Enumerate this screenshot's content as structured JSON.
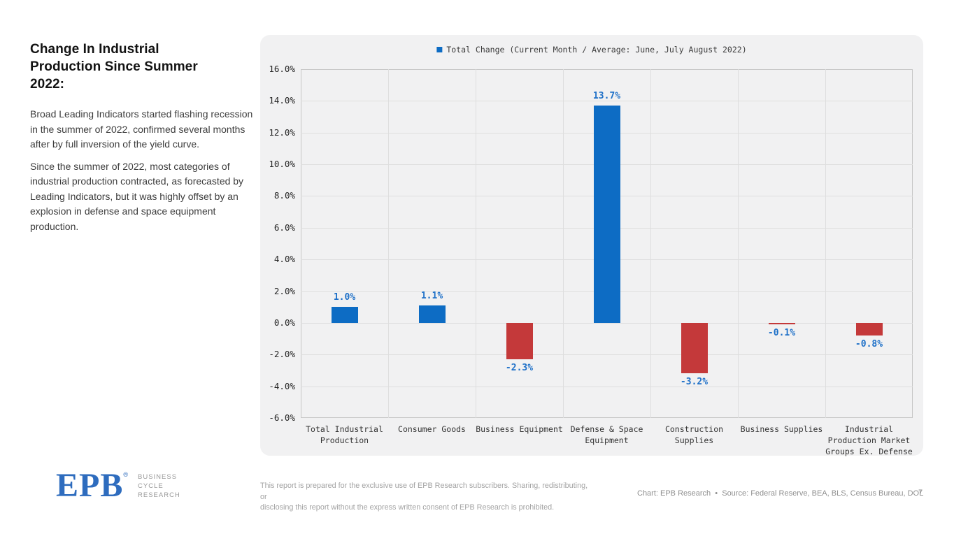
{
  "left_panel": {
    "title": "Change In Industrial Production Since Summer 2022:",
    "paragraphs": [
      "Broad Leading Indicators started flashing recession in the summer of 2022, confirmed several months after by full inversion of the yield curve.",
      "Since the summer of 2022, most categories of industrial production contracted, as forecasted by Leading Indicators, but it was highly offset by an explosion in defense and space equipment production."
    ]
  },
  "chart_data": {
    "type": "bar",
    "title": "",
    "xlabel": "",
    "ylabel": "",
    "legend": "Total Change (Current Month / Average: June, July August 2022)",
    "legend_position": "top-center",
    "grid": true,
    "categories": [
      "Total Industrial\nProduction",
      "Consumer Goods",
      "Business Equipment",
      "Defense & Space\nEquipment",
      "Construction\nSupplies",
      "Business Supplies",
      "Industrial\nProduction Market\nGroups Ex. Defense"
    ],
    "series": [
      {
        "name": "Total Change (Current Month / Average: June, July August 2022)",
        "values": [
          1.0,
          1.1,
          -2.3,
          13.7,
          -3.2,
          -0.1,
          -0.8
        ]
      }
    ],
    "value_labels": [
      "1.0%",
      "1.1%",
      "-2.3%",
      "13.7%",
      "-3.2%",
      "-0.1%",
      "-0.8%"
    ],
    "ylim": [
      -6,
      16
    ],
    "ytick_step": 2,
    "yticks": [
      {
        "v": 16,
        "label": "16.0%"
      },
      {
        "v": 14,
        "label": "14.0%"
      },
      {
        "v": 12,
        "label": "12.0%"
      },
      {
        "v": 10,
        "label": "10.0%"
      },
      {
        "v": 8,
        "label": "8.0%"
      },
      {
        "v": 6,
        "label": "6.0%"
      },
      {
        "v": 4,
        "label": "4.0%"
      },
      {
        "v": 2,
        "label": "2.0%"
      },
      {
        "v": 0,
        "label": "0.0%"
      },
      {
        "v": -2,
        "label": "-2.0%"
      },
      {
        "v": -4,
        "label": "-4.0%"
      },
      {
        "v": -6,
        "label": "-6.0%"
      }
    ],
    "colors": {
      "positive": "#0d6cc4",
      "negative": "#c4393a",
      "value_label": "#1e70c8",
      "panel_bg": "#f1f1f2",
      "gridline": "#dedede",
      "plot_border": "#c6c6c6",
      "axis_text": "#262626"
    }
  },
  "footer": {
    "logo_text": "EPB",
    "logo_reg": "®",
    "logo_caption": "BUSINESS\nCYCLE\nRESEARCH",
    "disclaimer": "This report is prepared for the exclusive use of EPB Research subscribers. Sharing, redistributing, or\ndisclosing this report without the express written consent of EPB Research is prohibited.",
    "credit": "Chart: EPB Research  •  Source: Federal Reserve, BEA, BLS, Census Bureau, DOL",
    "page_number": "7"
  }
}
